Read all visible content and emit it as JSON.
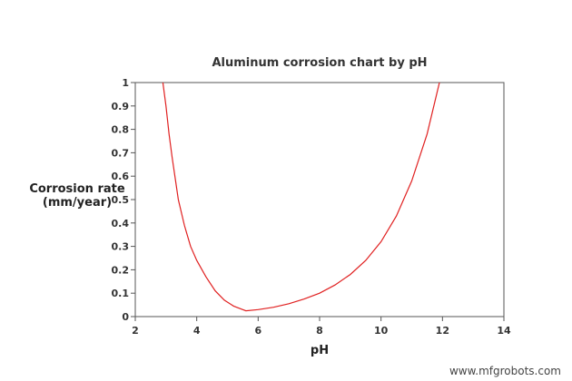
{
  "chart_data": {
    "type": "line",
    "title": "Aluminum corrosion chart by pH",
    "xlabel": "pH",
    "ylabel_lines": [
      "Corrosion rate",
      "(mm/year)"
    ],
    "xlim": [
      2,
      14
    ],
    "ylim": [
      0,
      1
    ],
    "xticks": [
      2,
      4,
      6,
      8,
      10,
      12,
      14
    ],
    "yticks": [
      0,
      0.1,
      0.2,
      0.3,
      0.4,
      0.5,
      0.6,
      0.7,
      0.8,
      0.9,
      1
    ],
    "ytick_labels": [
      "0",
      "0.1",
      "0.2",
      "0.3",
      "0.4",
      "0.5",
      "0.6",
      "0.7",
      "0.8",
      "0.9",
      "1"
    ],
    "grid": false,
    "line_color": "#e02020",
    "series": [
      {
        "x": [
          2.9,
          3.0,
          3.1,
          3.2,
          3.4,
          3.6,
          3.8,
          4.0,
          4.3,
          4.6,
          4.9,
          5.2,
          5.5,
          5.6,
          6.0,
          6.5,
          7.0,
          7.5,
          8.0,
          8.5,
          9.0,
          9.5,
          10.0,
          10.5,
          11.0,
          11.5,
          11.9
        ],
        "y": [
          1.0,
          0.9,
          0.78,
          0.68,
          0.5,
          0.39,
          0.3,
          0.24,
          0.17,
          0.11,
          0.07,
          0.045,
          0.03,
          0.025,
          0.03,
          0.04,
          0.055,
          0.075,
          0.1,
          0.135,
          0.18,
          0.24,
          0.32,
          0.43,
          0.58,
          0.78,
          1.0
        ]
      }
    ]
  },
  "watermark": "www.mfgrobots.com"
}
